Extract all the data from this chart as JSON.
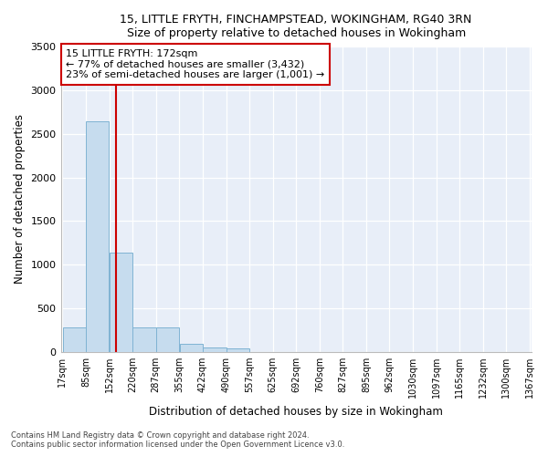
{
  "title1": "15, LITTLE FRYTH, FINCHAMPSTEAD, WOKINGHAM, RG40 3RN",
  "title2": "Size of property relative to detached houses in Wokingham",
  "xlabel": "Distribution of detached houses by size in Wokingham",
  "ylabel": "Number of detached properties",
  "bar_edges": [
    17,
    85,
    152,
    220,
    287,
    355,
    422,
    490,
    557,
    625,
    692,
    760,
    827,
    895,
    962,
    1030,
    1097,
    1165,
    1232,
    1300,
    1367
  ],
  "bar_heights": [
    280,
    2640,
    1140,
    285,
    285,
    95,
    55,
    38,
    0,
    0,
    0,
    0,
    0,
    0,
    0,
    0,
    0,
    0,
    0,
    0
  ],
  "bar_color": "#c6dcee",
  "bar_edgecolor": "#7fb3d3",
  "property_line_x": 172,
  "property_line_color": "#cc0000",
  "annotation_text": "15 LITTLE FRYTH: 172sqm\n← 77% of detached houses are smaller (3,432)\n23% of semi-detached houses are larger (1,001) →",
  "annotation_box_color": "#cc0000",
  "ylim": [
    0,
    3500
  ],
  "yticks": [
    0,
    500,
    1000,
    1500,
    2000,
    2500,
    3000,
    3500
  ],
  "footnote1": "Contains HM Land Registry data © Crown copyright and database right 2024.",
  "footnote2": "Contains public sector information licensed under the Open Government Licence v3.0.",
  "plot_bg_color": "#e8eef8",
  "grid_color": "#ffffff"
}
